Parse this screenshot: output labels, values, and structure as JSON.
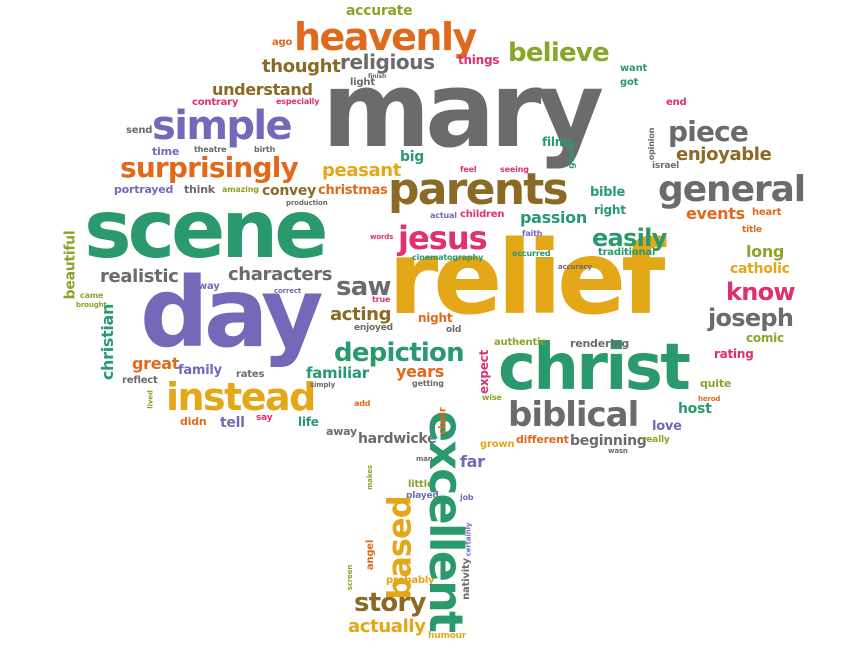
{
  "colors": {
    "green": "#2a9a6e",
    "gold": "#e3a718",
    "gray": "#6b6b6b",
    "purple": "#7568b8",
    "orange": "#df6a1c",
    "pink": "#e0306e",
    "olive": "#8aa52a",
    "brown": "#8a6a24"
  },
  "words": [
    {
      "text": "mary",
      "color": "gray"
    },
    {
      "text": "relief",
      "color": "gold"
    },
    {
      "text": "scene",
      "color": "green"
    },
    {
      "text": "day",
      "color": "purple"
    },
    {
      "text": "christ",
      "color": "green"
    },
    {
      "text": "parents",
      "color": "brown"
    },
    {
      "text": "heavenly",
      "color": "orange"
    },
    {
      "text": "simple",
      "color": "purple"
    },
    {
      "text": "general",
      "color": "gray"
    },
    {
      "text": "instead",
      "color": "gold"
    },
    {
      "text": "biblical",
      "color": "gray"
    },
    {
      "text": "surprisingly",
      "color": "orange"
    },
    {
      "text": "jesus",
      "color": "green"
    },
    {
      "text": "excellent",
      "color": "gold"
    },
    {
      "text": "based",
      "color": "pink"
    },
    {
      "text": "depiction",
      "color": "green"
    },
    {
      "text": "believe",
      "color": "olive"
    },
    {
      "text": "religious",
      "color": "gray"
    },
    {
      "text": "thought",
      "color": "brown"
    },
    {
      "text": "piece",
      "color": "gray"
    },
    {
      "text": "enjoyable",
      "color": "brown"
    },
    {
      "text": "easily",
      "color": "green"
    },
    {
      "text": "story",
      "color": "brown"
    },
    {
      "text": "joseph",
      "color": "gray"
    },
    {
      "text": "know",
      "color": "pink"
    },
    {
      "text": "saw",
      "color": "gray"
    },
    {
      "text": "characters",
      "color": "gray"
    },
    {
      "text": "realistic",
      "color": "gray"
    },
    {
      "text": "understand",
      "color": "brown"
    },
    {
      "text": "peasant",
      "color": "gold"
    },
    {
      "text": "acting",
      "color": "brown"
    },
    {
      "text": "events",
      "color": "orange"
    },
    {
      "text": "passion",
      "color": "green"
    },
    {
      "text": "long",
      "color": "olive"
    },
    {
      "text": "catholic",
      "color": "gold"
    },
    {
      "text": "accurate",
      "color": "olive"
    },
    {
      "text": "convey",
      "color": "brown"
    },
    {
      "text": "christmas",
      "color": "orange"
    },
    {
      "text": "great",
      "color": "orange"
    },
    {
      "text": "familiar",
      "color": "green"
    },
    {
      "text": "years",
      "color": "orange"
    },
    {
      "text": "family",
      "color": "purple"
    },
    {
      "text": "actually",
      "color": "gold"
    },
    {
      "text": "hardwicke",
      "color": "gray"
    },
    {
      "text": "beginning",
      "color": "gray"
    },
    {
      "text": "host",
      "color": "green"
    },
    {
      "text": "love",
      "color": "purple"
    },
    {
      "text": "far",
      "color": "purple"
    },
    {
      "text": "things",
      "color": "pink"
    },
    {
      "text": "comic",
      "color": "olive"
    },
    {
      "text": "rating",
      "color": "pink"
    },
    {
      "text": "night",
      "color": "orange"
    },
    {
      "text": "films",
      "color": "green"
    },
    {
      "text": "big",
      "color": "green"
    },
    {
      "text": "bible",
      "color": "green"
    },
    {
      "text": "right",
      "color": "green"
    },
    {
      "text": "christian",
      "color": "green"
    },
    {
      "text": "beautiful",
      "color": "olive"
    },
    {
      "text": "tell",
      "color": "purple"
    },
    {
      "text": "life",
      "color": "green"
    },
    {
      "text": "didn",
      "color": "orange"
    },
    {
      "text": "away",
      "color": "gray"
    },
    {
      "text": "rendering",
      "color": "gray"
    },
    {
      "text": "expect",
      "color": "pink"
    },
    {
      "text": "authentic",
      "color": "olive"
    },
    {
      "text": "different",
      "color": "orange"
    },
    {
      "text": "quite",
      "color": "olive"
    },
    {
      "text": "ago",
      "color": "orange"
    },
    {
      "text": "time",
      "color": "purple"
    },
    {
      "text": "portrayed",
      "color": "purple"
    },
    {
      "text": "think",
      "color": "gray"
    },
    {
      "text": "send",
      "color": "gray"
    },
    {
      "text": "contrary",
      "color": "pink"
    },
    {
      "text": "light",
      "color": "gray"
    },
    {
      "text": "want",
      "color": "green"
    },
    {
      "text": "got",
      "color": "green"
    },
    {
      "text": "end",
      "color": "pink"
    },
    {
      "text": "way",
      "color": "purple"
    },
    {
      "text": "rates",
      "color": "gray"
    },
    {
      "text": "reflect",
      "color": "gray"
    },
    {
      "text": "heart",
      "color": "orange"
    },
    {
      "text": "title",
      "color": "orange"
    },
    {
      "text": "israel",
      "color": "gray"
    },
    {
      "text": "grown",
      "color": "gold"
    },
    {
      "text": "little",
      "color": "olive"
    },
    {
      "text": "played",
      "color": "purple"
    },
    {
      "text": "angel",
      "color": "orange"
    },
    {
      "text": "nativity",
      "color": "gray"
    },
    {
      "text": "probably",
      "color": "gold"
    },
    {
      "text": "humour",
      "color": "gold"
    },
    {
      "text": "choir",
      "color": "orange"
    },
    {
      "text": "say",
      "color": "pink"
    },
    {
      "text": "enjoyed",
      "color": "gray"
    },
    {
      "text": "old",
      "color": "gray"
    },
    {
      "text": "traditional",
      "color": "green"
    },
    {
      "text": "children",
      "color": "pink"
    },
    {
      "text": "seeing",
      "color": "pink"
    },
    {
      "text": "feel",
      "color": "pink"
    },
    {
      "text": "good",
      "color": "green"
    },
    {
      "text": "opinion",
      "color": "gray"
    },
    {
      "text": "cinematography",
      "color": "green"
    },
    {
      "text": "occurred",
      "color": "green"
    },
    {
      "text": "really",
      "color": "olive"
    },
    {
      "text": "came",
      "color": "olive"
    },
    {
      "text": "brought",
      "color": "olive"
    },
    {
      "text": "herod",
      "color": "orange"
    },
    {
      "text": "getting",
      "color": "gray"
    },
    {
      "text": "wise",
      "color": "olive"
    },
    {
      "text": "especially",
      "color": "pink"
    },
    {
      "text": "theatre",
      "color": "gray"
    },
    {
      "text": "birth",
      "color": "gray"
    },
    {
      "text": "amazing",
      "color": "olive"
    },
    {
      "text": "production",
      "color": "gray"
    },
    {
      "text": "actual",
      "color": "purple"
    },
    {
      "text": "faith",
      "color": "purple"
    },
    {
      "text": "words",
      "color": "pink"
    },
    {
      "text": "true",
      "color": "pink"
    },
    {
      "text": "correct",
      "color": "purple"
    },
    {
      "text": "accuracy",
      "color": "gray"
    },
    {
      "text": "simply",
      "color": "gray"
    },
    {
      "text": "add",
      "color": "orange"
    },
    {
      "text": "job",
      "color": "purple"
    },
    {
      "text": "finish",
      "color": "gray"
    },
    {
      "text": "lived",
      "color": "olive"
    },
    {
      "text": "makes",
      "color": "olive"
    },
    {
      "text": "man",
      "color": "gray"
    },
    {
      "text": "certainly",
      "color": "purple"
    },
    {
      "text": "screen",
      "color": "olive"
    },
    {
      "text": "wasn",
      "color": "gray"
    }
  ]
}
